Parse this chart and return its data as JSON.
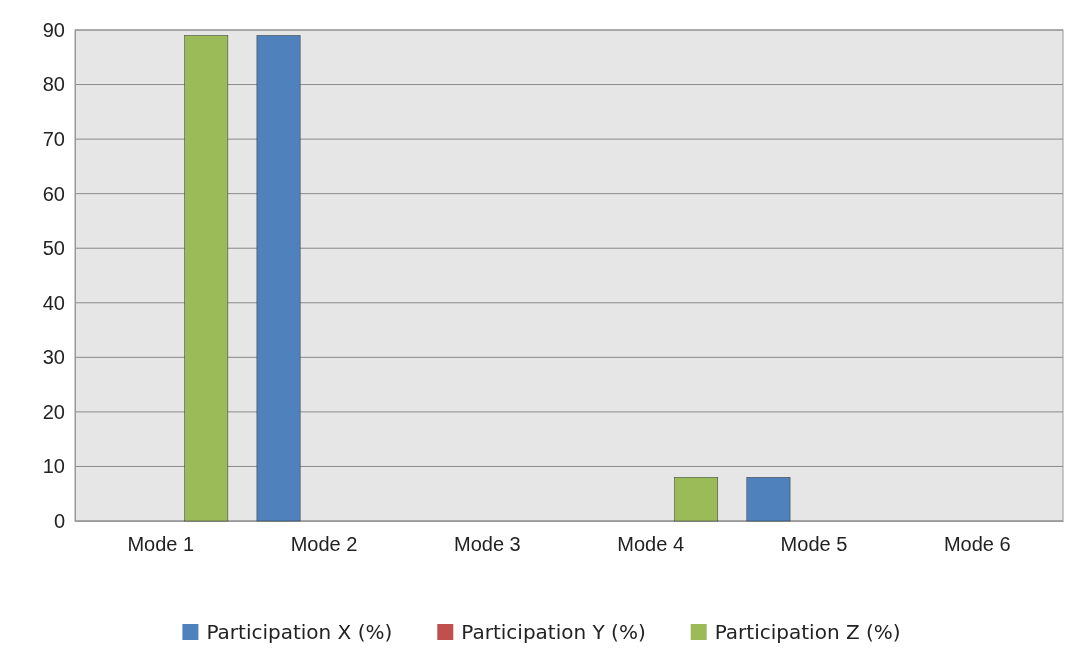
{
  "chart_data": {
    "type": "bar",
    "categories": [
      "Mode 1",
      "Mode 2",
      "Mode 3",
      "Mode 4",
      "Mode 5",
      "Mode 6"
    ],
    "series": [
      {
        "name": "Participation X (%)",
        "color": "#4f81bd",
        "values": [
          0,
          89,
          0,
          0,
          8,
          0
        ]
      },
      {
        "name": "Participation Y (%)",
        "color": "#c0504d",
        "values": [
          0,
          0,
          0,
          0,
          0,
          0
        ]
      },
      {
        "name": "Participation Z (%)",
        "color": "#9bbb59",
        "values": [
          89,
          0,
          0,
          8,
          0,
          0
        ]
      }
    ],
    "ylim": [
      0,
      90
    ],
    "yticks": [
      0,
      10,
      20,
      30,
      40,
      50,
      60,
      70,
      80,
      90
    ],
    "grid": "y",
    "legend": "bottom"
  }
}
